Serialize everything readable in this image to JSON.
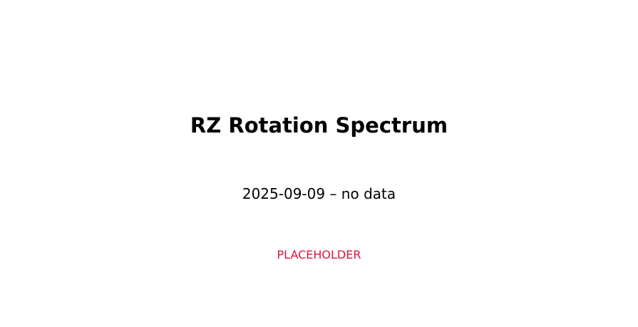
{
  "chart_data": {
    "type": "line",
    "title": "RZ Rotation Spectrum",
    "subtitle": "2025-09-09 – no data",
    "annotation": "PLACEHOLDER",
    "series": [],
    "grid": false,
    "legend": "none"
  },
  "colors": {
    "background": "#ffffff",
    "text": "#000000",
    "placeholder": "#dc143c"
  }
}
